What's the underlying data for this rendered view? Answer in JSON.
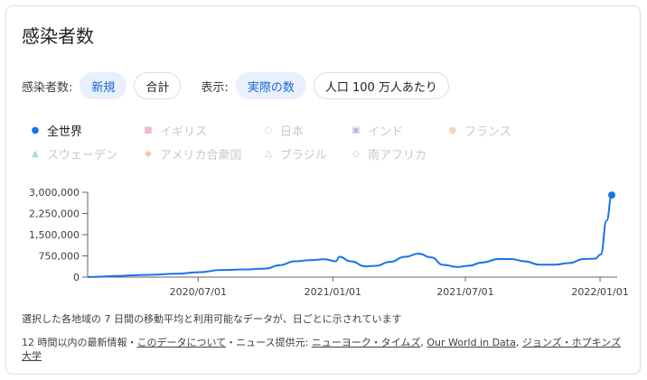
{
  "title": "感染者数",
  "controls": {
    "cases_label": "感染者数:",
    "new_label": "新規",
    "cumulative_label": "合計",
    "display_label": "表示:",
    "actual_label": "実際の数",
    "per_million_label": "人口 100 万人あたり"
  },
  "legend": [
    {
      "label": "全世界",
      "marker": "●",
      "color": "#1a73e8",
      "active": true
    },
    {
      "label": "イギリス",
      "marker": "■",
      "color": "#f4b6d6",
      "active": false
    },
    {
      "label": "日本",
      "marker": "○",
      "color": "#e3c6f0",
      "active": false
    },
    {
      "label": "インド",
      "marker": "▣",
      "color": "#b0b8e0",
      "active": false
    },
    {
      "label": "フランス",
      "marker": "●",
      "color": "#f9d2b8",
      "active": false
    },
    {
      "label": "スウェーデン",
      "marker": "▲",
      "color": "#a8dcd9",
      "active": false
    },
    {
      "label": "アメリカ合衆国",
      "marker": "◆",
      "color": "#f5c6a8",
      "active": false
    },
    {
      "label": "ブラジル",
      "marker": "△",
      "color": "#a8d4a8",
      "active": false
    },
    {
      "label": "南アフリカ",
      "marker": "◇",
      "color": "#c8c8c8",
      "active": false
    }
  ],
  "chart_data": {
    "type": "line",
    "x_ticks": [
      "2020/07/01",
      "2021/01/01",
      "2021/07/01",
      "2022/01/01"
    ],
    "y_ticks": [
      "3,000,000",
      "2,250,000",
      "1,500,000",
      "750,000",
      "0"
    ],
    "ylim": [
      0,
      3000000
    ],
    "series": [
      {
        "color": "#1a73e8",
        "x": [
          "2020-02-01",
          "2020-03-15",
          "2020-04-01",
          "2020-05-01",
          "2020-06-01",
          "2020-07-01",
          "2020-08-01",
          "2020-09-01",
          "2020-10-01",
          "2020-10-20",
          "2020-11-10",
          "2020-12-01",
          "2020-12-20",
          "2021-01-05",
          "2021-01-10",
          "2021-01-25",
          "2021-02-15",
          "2021-03-01",
          "2021-03-20",
          "2021-04-10",
          "2021-04-28",
          "2021-05-15",
          "2021-06-01",
          "2021-06-20",
          "2021-07-05",
          "2021-07-25",
          "2021-08-15",
          "2021-09-01",
          "2021-09-20",
          "2021-10-10",
          "2021-11-01",
          "2021-11-20",
          "2021-12-10",
          "2021-12-25",
          "2022-01-02",
          "2022-01-10",
          "2022-01-17"
        ],
        "y": [
          3000,
          40000,
          65000,
          85000,
          120000,
          170000,
          250000,
          270000,
          300000,
          420000,
          560000,
          600000,
          630000,
          560000,
          720000,
          560000,
          380000,
          400000,
          540000,
          720000,
          830000,
          700000,
          430000,
          360000,
          400000,
          520000,
          640000,
          640000,
          560000,
          440000,
          440000,
          500000,
          640000,
          650000,
          800000,
          2000000,
          2900000
        ]
      }
    ]
  },
  "note": "選択した各地域の 7 日間の移動平均と利用可能なデータが、日ごとに示されています",
  "footer": {
    "prefix": "12 時間以内の最新情報・",
    "about_link": "このデータについて",
    "middle": "・ニュース提供元: ",
    "source1": "ニューヨーク・タイムズ",
    "sep1": ", ",
    "source2": "Our World in Data",
    "sep2": ", ",
    "source3": "ジョンズ・ホプキンズ大学"
  }
}
